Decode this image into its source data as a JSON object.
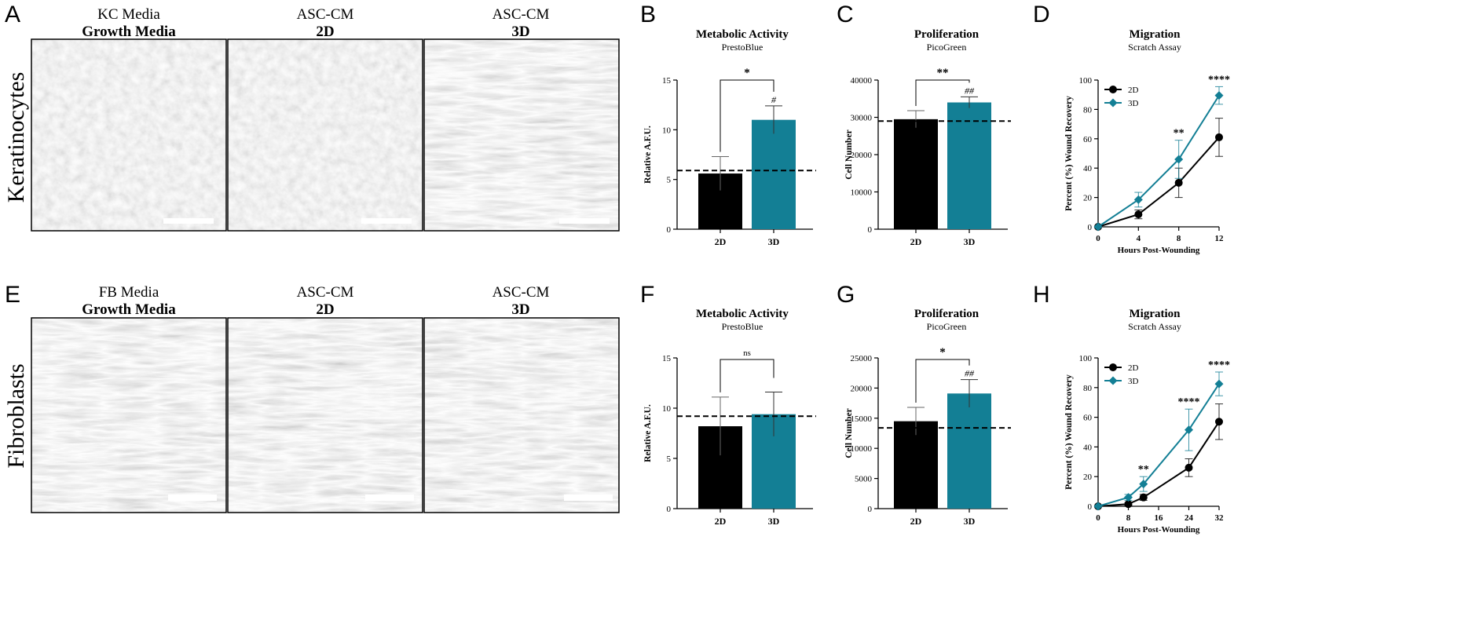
{
  "panel_letters": [
    "A",
    "B",
    "C",
    "D",
    "E",
    "F",
    "G",
    "H"
  ],
  "row_labels": [
    "Keratinocytes",
    "Fibroblasts"
  ],
  "micrographs": {
    "row1": [
      {
        "line1": "KC Media",
        "line2": "Growth Media"
      },
      {
        "line1": "ASC-CM",
        "line2": "2D"
      },
      {
        "line1": "ASC-CM",
        "line2": "3D"
      }
    ],
    "row2": [
      {
        "line1": "FB Media",
        "line2": "Growth Media"
      },
      {
        "line1": "ASC-CM",
        "line2": "2D"
      },
      {
        "line1": "ASC-CM",
        "line2": "3D"
      }
    ]
  },
  "colors": {
    "series_2d": "#000000",
    "series_3d": "#137f95"
  },
  "chart_data": [
    {
      "panel": "B",
      "type": "bar",
      "title": "Metabolic Activity",
      "subtitle": "PrestoBlue",
      "ylabel": "Relative A.F.U.",
      "ylim": [
        0,
        15
      ],
      "yticks": [
        0,
        5,
        10,
        15
      ],
      "ytick_labels": [
        "0",
        "5",
        "10",
        "15"
      ],
      "categories": [
        "2D",
        "3D"
      ],
      "values": [
        5.6,
        11.0
      ],
      "errors": [
        1.7,
        1.4
      ],
      "baseline": 5.9,
      "significance": "*",
      "over_bar": [
        "",
        "#"
      ]
    },
    {
      "panel": "C",
      "type": "bar",
      "title": "Proliferation",
      "subtitle": "PicoGreen",
      "ylabel": "Cell Number",
      "ylim": [
        0,
        40000
      ],
      "yticks": [
        0,
        10000,
        20000,
        30000,
        40000
      ],
      "ytick_labels": [
        "0",
        "10000",
        "20000",
        "30000",
        "40000"
      ],
      "categories": [
        "2D",
        "3D"
      ],
      "values": [
        29500,
        34000
      ],
      "errors": [
        2300,
        1500
      ],
      "baseline": 29000,
      "significance": "**",
      "over_bar": [
        "",
        "##"
      ]
    },
    {
      "panel": "D",
      "type": "line",
      "title": "Migration",
      "subtitle": "Scratch Assay",
      "xlabel": "Hours Post-Wounding",
      "ylabel": "Percent (%) Wound Recovery",
      "xlim": [
        0,
        12
      ],
      "ylim": [
        0,
        100
      ],
      "xticks": [
        0,
        4,
        8,
        12
      ],
      "xtick_labels": [
        "0",
        "4",
        "8",
        "12"
      ],
      "yticks": [
        0,
        20,
        40,
        60,
        80,
        100
      ],
      "ytick_labels": [
        "0",
        "20",
        "40",
        "60",
        "80",
        "100"
      ],
      "legend": "top-left",
      "x": [
        0,
        4,
        8,
        12
      ],
      "series": [
        {
          "name": "2D",
          "values": [
            0,
            8.5,
            30,
            61
          ],
          "errors": [
            0,
            3,
            10,
            13
          ]
        },
        {
          "name": "3D",
          "values": [
            0,
            18.5,
            46,
            89.5
          ],
          "errors": [
            0,
            5,
            13,
            6
          ]
        }
      ],
      "significance": [
        {
          "x": 8,
          "label": "**"
        },
        {
          "x": 12,
          "label": "****"
        }
      ]
    },
    {
      "panel": "F",
      "type": "bar",
      "title": "Metabolic Activity",
      "subtitle": "PrestoBlue",
      "ylabel": "Relative A.F.U.",
      "ylim": [
        0,
        15
      ],
      "yticks": [
        0,
        5,
        10,
        15
      ],
      "ytick_labels": [
        "0",
        "5",
        "10",
        "15"
      ],
      "categories": [
        "2D",
        "3D"
      ],
      "values": [
        8.2,
        9.4
      ],
      "errors": [
        2.9,
        2.2
      ],
      "baseline": 9.2,
      "significance": "ns",
      "over_bar": [
        "",
        ""
      ]
    },
    {
      "panel": "G",
      "type": "bar",
      "title": "Proliferation",
      "subtitle": "PicoGreen",
      "ylabel": "Cell Number",
      "ylim": [
        0,
        25000
      ],
      "yticks": [
        0,
        5000,
        10000,
        15000,
        20000,
        25000
      ],
      "ytick_labels": [
        "0",
        "5000",
        "10000",
        "15000",
        "20000",
        "25000"
      ],
      "categories": [
        "2D",
        "3D"
      ],
      "values": [
        14500,
        19100
      ],
      "errors": [
        2300,
        2300
      ],
      "baseline": 13400,
      "significance": "*",
      "over_bar": [
        "",
        "##"
      ]
    },
    {
      "panel": "H",
      "type": "line",
      "title": "Migration",
      "subtitle": "Scratch Assay",
      "xlabel": "Hours Post-Wounding",
      "ylabel": "Percent (%) Wound Recovery",
      "xlim": [
        0,
        32
      ],
      "ylim": [
        0,
        100
      ],
      "xticks": [
        0,
        8,
        16,
        24,
        32
      ],
      "xtick_labels": [
        "0",
        "8",
        "16",
        "24",
        "32"
      ],
      "yticks": [
        0,
        20,
        40,
        60,
        80,
        100
      ],
      "ytick_labels": [
        "0",
        "20",
        "40",
        "60",
        "80",
        "100"
      ],
      "legend": "top-left",
      "x": [
        0,
        8,
        12,
        24,
        32
      ],
      "series": [
        {
          "name": "2D",
          "values": [
            0,
            1.5,
            6,
            26,
            57
          ],
          "errors": [
            0,
            1,
            2,
            6,
            12
          ]
        },
        {
          "name": "3D",
          "values": [
            0,
            6,
            15,
            51.5,
            82.5
          ],
          "errors": [
            0,
            2,
            5,
            14,
            8
          ]
        }
      ],
      "significance": [
        {
          "x": 12,
          "label": "**"
        },
        {
          "x": 24,
          "label": "****"
        },
        {
          "x": 32,
          "label": "****"
        }
      ]
    }
  ]
}
